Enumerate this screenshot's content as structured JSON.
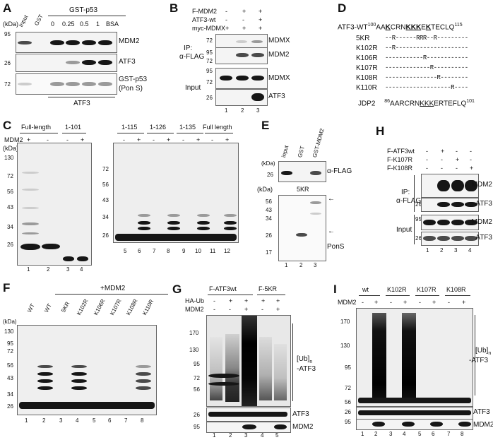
{
  "panels": [
    "A",
    "B",
    "C",
    "D",
    "E",
    "F",
    "G",
    "H",
    "I"
  ],
  "A": {
    "lanes": [
      "Input",
      "GST",
      "0",
      "0.25",
      "0.5",
      "1",
      "BSA"
    ],
    "group": "GST-p53",
    "bands": [
      "MDM2",
      "ATF3",
      "GST-p53",
      "(Pon S)"
    ],
    "kda_unit": "(kDa)",
    "kda": [
      "95",
      "26",
      "72"
    ],
    "bottom": "ATF3"
  },
  "B": {
    "rows": [
      {
        "label": "F-MDM2",
        "signs": [
          "-",
          "+",
          "+"
        ]
      },
      {
        "label": "ATF3-wt",
        "signs": [
          "-",
          "-",
          "+"
        ]
      },
      {
        "label": "myc-MDMX",
        "signs": [
          "+",
          "+",
          "+"
        ]
      }
    ],
    "ip_label": "IP:",
    "ip_ab": "α-FLAG",
    "input": "Input",
    "bands": [
      "MDMX",
      "MDM2",
      "MDMX",
      "ATF3"
    ],
    "kda": [
      "72",
      "95",
      "72",
      "95",
      "72",
      "26"
    ],
    "lanes": [
      "1",
      "2",
      "3"
    ]
  },
  "C": {
    "groups_left": [
      "Full-length",
      "1-101"
    ],
    "groups_right": [
      "1-115",
      "1-126",
      "1-135",
      "Full length"
    ],
    "mdm2_label": "MDM2",
    "signs_left": [
      "+",
      "-",
      "-",
      "+"
    ],
    "signs_right": [
      "-",
      "+",
      "-",
      "+",
      "-",
      "+",
      "-",
      "+"
    ],
    "kda_unit": "(kDa)",
    "kda_left": [
      "130",
      "72",
      "56",
      "43",
      "34",
      "26"
    ],
    "kda_right": [
      "72",
      "56",
      "43",
      "34",
      "26"
    ],
    "lanes_left": [
      "1",
      "2",
      "3",
      "4"
    ],
    "lanes_right": [
      "5",
      "6",
      "7",
      "8",
      "9",
      "10",
      "11",
      "12"
    ]
  },
  "D": {
    "wt_prefix": "ATF3-WT",
    "wt_start": "100",
    "wt_seq_a": "AA",
    "wt_k1": "K",
    "wt_seq_b": "CRN",
    "wt_k2": "KKK",
    "wt_seq_c": "E",
    "wt_k3": "K",
    "wt_seq_d": "TECLQ",
    "wt_end": "115",
    "mutants": [
      {
        "name": "5KR",
        "seq": "--R------RRR--R---------"
      },
      {
        "name": "K102R",
        "seq": "--R---------------------"
      },
      {
        "name": "K106R",
        "seq": "-----------R------------"
      },
      {
        "name": "K107R",
        "seq": "-------------R----------"
      },
      {
        "name": "K108R",
        "seq": "---------------R--------"
      },
      {
        "name": "K110R",
        "seq": "-------------------R----"
      }
    ],
    "jdp2_name": "JDP2",
    "jdp2_start": "86",
    "jdp2_seq_a": "AARCRN",
    "jdp2_k": "KKK",
    "jdp2_seq_b": "ERTEFLQ",
    "jdp2_end": "101"
  },
  "E": {
    "lanes": [
      "input",
      "GST",
      "GST-MDM2"
    ],
    "kda_unit": "(kDa)",
    "top_kda": [
      "26"
    ],
    "top_band": "α-FLAG",
    "construct": "5KR",
    "kda": [
      "56",
      "43",
      "34",
      "26",
      "17"
    ],
    "pons": "PonS",
    "lane_nums": [
      "1",
      "2",
      "3"
    ]
  },
  "F": {
    "header": "+MDM2",
    "lanes": [
      "WT",
      "WT",
      "5KR",
      "K102R",
      "K106R",
      "K107R",
      "K108R",
      "K110R"
    ],
    "kda_unit": "(kDa)",
    "kda": [
      "130",
      "95",
      "72",
      "56",
      "43",
      "34",
      "26"
    ],
    "lane_nums": [
      "1",
      "2",
      "3",
      "4",
      "5",
      "6",
      "7",
      "8"
    ]
  },
  "G": {
    "groups": [
      "F-ATF3wt",
      "F-5KR"
    ],
    "rows": [
      {
        "label": "HA-Ub",
        "signs": [
          "-",
          "+",
          "+",
          "+",
          "+"
        ]
      },
      {
        "label": "MDM2",
        "signs": [
          "-",
          "-",
          "+",
          "-",
          "+"
        ]
      }
    ],
    "kda": [
      "170",
      "130",
      "95",
      "72",
      "56",
      "26",
      "95"
    ],
    "ub": "[Ub]",
    "ub_sub": "n",
    "ub_target": "-ATF3",
    "bands": [
      "ATF3",
      "MDM2"
    ],
    "lane_nums": [
      "1",
      "2",
      "3",
      "4",
      "5"
    ]
  },
  "H": {
    "rows": [
      {
        "label": "F-ATF3wt",
        "signs": [
          "-",
          "+",
          "-",
          "-"
        ]
      },
      {
        "label": "F-K107R",
        "signs": [
          "-",
          "-",
          "+",
          "-"
        ]
      },
      {
        "label": "F-K108R",
        "signs": [
          "-",
          "-",
          "-",
          "+"
        ]
      }
    ],
    "ip_label": "IP:",
    "ip_ab": "α-FLAG",
    "input": "Input",
    "bands": [
      "MDM2",
      "ATF3",
      "MDM2",
      "ATF3"
    ],
    "kda": [
      "95",
      "26",
      "95",
      "26"
    ],
    "lane_nums": [
      "1",
      "2",
      "3",
      "4"
    ]
  },
  "I": {
    "groups": [
      "wt",
      "K102R",
      "K107R",
      "K108R"
    ],
    "mdm2_label": "MDM2",
    "signs": [
      "-",
      "+",
      "-",
      "+",
      "-",
      "+",
      "-",
      "+"
    ],
    "kda": [
      "170",
      "130",
      "95",
      "72",
      "56",
      "26",
      "95"
    ],
    "ub": "[Ub]",
    "ub_sub": "n",
    "ub_target": "-ATF3",
    "bands": [
      "ATF3",
      "MDM2"
    ],
    "lane_nums": [
      "1",
      "2",
      "3",
      "4",
      "5",
      "6",
      "7",
      "8"
    ]
  }
}
